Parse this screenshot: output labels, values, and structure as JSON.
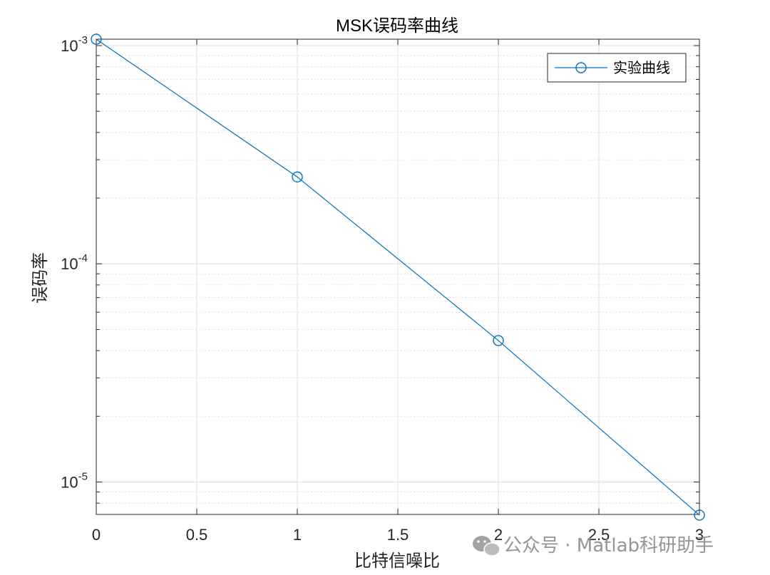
{
  "chart_data": {
    "type": "line",
    "title": "MSK误码率曲线",
    "xlabel": "比特信噪比",
    "ylabel": "误码率",
    "x": [
      0,
      1,
      2,
      3
    ],
    "series": [
      {
        "name": "实验曲线",
        "values": [
          0.00107,
          0.00025,
          4.45e-05,
          7.05e-06
        ],
        "color": "#0072BD",
        "marker": "circle"
      }
    ],
    "xlim": [
      0,
      3
    ],
    "ylim": [
      7.1e-06,
      0.00107
    ],
    "yscale": "log",
    "xticks": [
      0,
      0.5,
      1,
      1.5,
      2,
      2.5,
      3
    ],
    "xtick_labels": [
      "0",
      "0.5",
      "1",
      "1.5",
      "2",
      "2.5",
      "3"
    ],
    "yticks": [
      {
        "value": 0.001,
        "base": "10",
        "exp": "-3"
      },
      {
        "value": 0.0001,
        "base": "10",
        "exp": "-4"
      },
      {
        "value": 1e-05,
        "base": "10",
        "exp": "-5"
      }
    ],
    "grid": true,
    "minor_grid": true,
    "legend_position": "top-right"
  },
  "watermark": {
    "text": "公众号 · Matlab科研助手",
    "icon": "wechat-icon"
  }
}
